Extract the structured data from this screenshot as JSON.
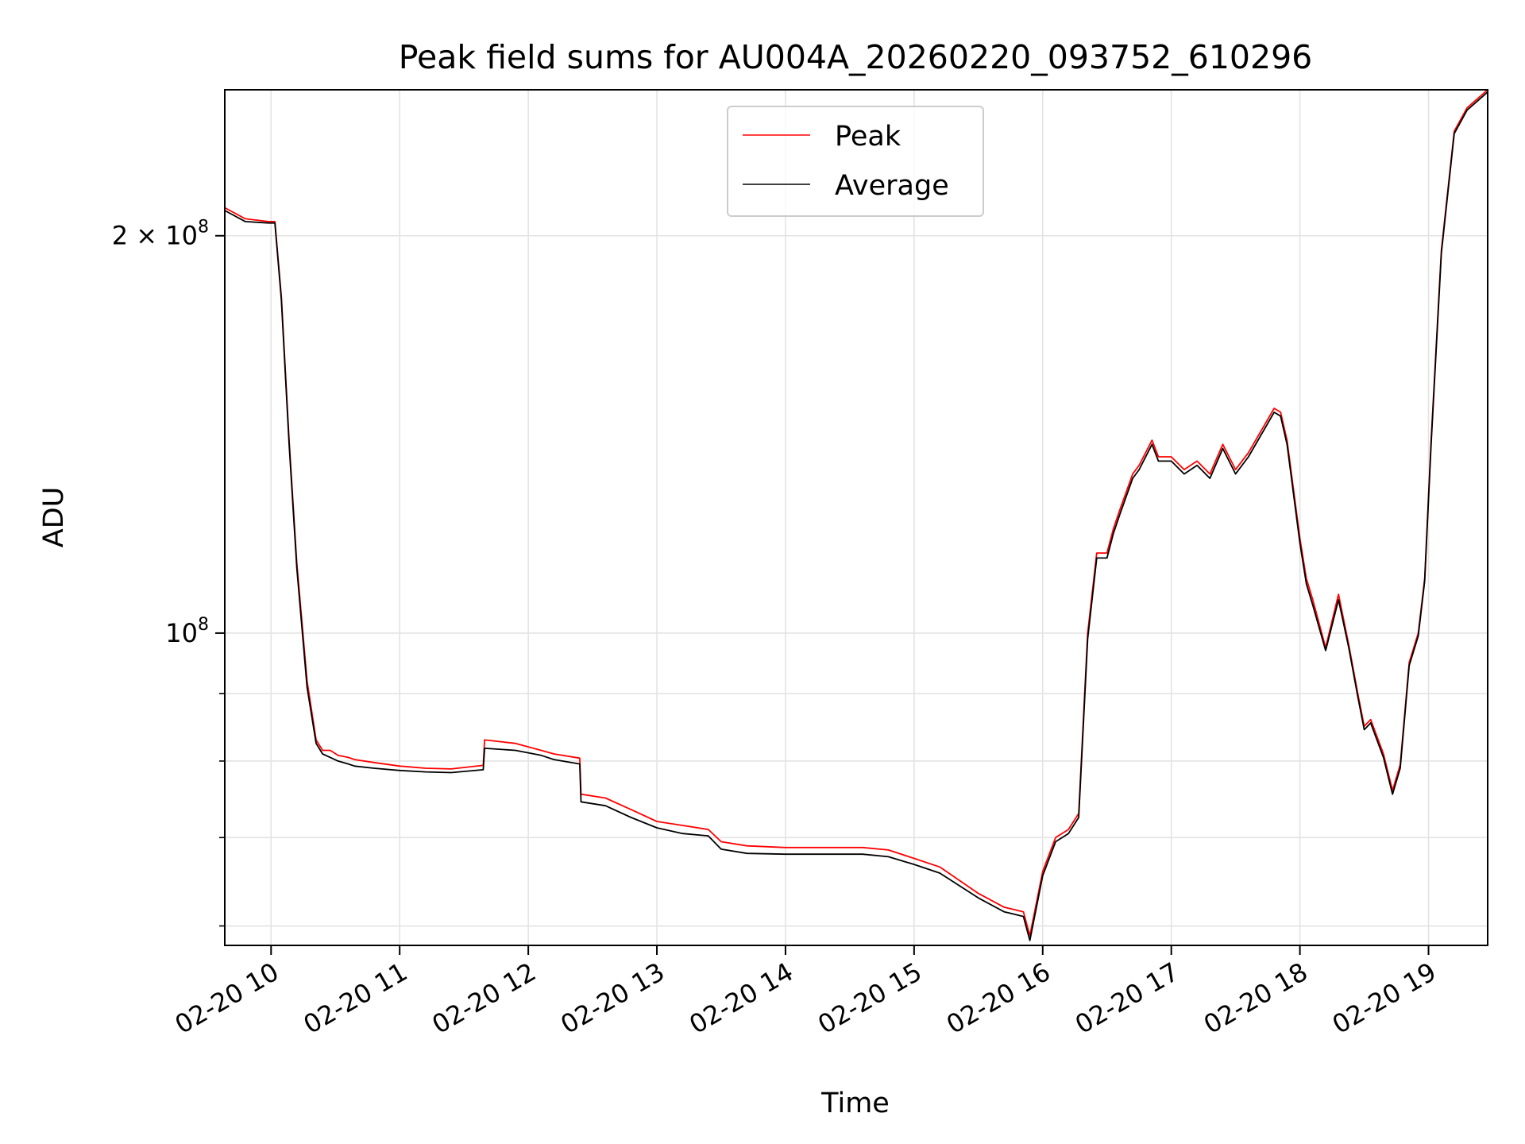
{
  "chart_data": {
    "type": "line",
    "title": "Peak field sums for AU004A_20260220_093752_610296",
    "xlabel": "Time",
    "ylabel": "ADU",
    "yscale": "log",
    "ylim": [
      58000000,
      258000000
    ],
    "xlim": [
      9.64,
      19.46
    ],
    "grid": true,
    "legend_position": "upper center",
    "x_ticks": [
      {
        "value": 10,
        "label": "02-20 10"
      },
      {
        "value": 11,
        "label": "02-20 11"
      },
      {
        "value": 12,
        "label": "02-20 12"
      },
      {
        "value": 13,
        "label": "02-20 13"
      },
      {
        "value": 14,
        "label": "02-20 14"
      },
      {
        "value": 15,
        "label": "02-20 15"
      },
      {
        "value": 16,
        "label": "02-20 16"
      },
      {
        "value": 17,
        "label": "02-20 17"
      },
      {
        "value": 18,
        "label": "02-20 18"
      },
      {
        "value": 19,
        "label": "02-20 19"
      }
    ],
    "y_ticks": [
      {
        "value": 100000000,
        "base": "10",
        "exp": "8"
      },
      {
        "value": 200000000,
        "base": "2 × 10",
        "exp": "8"
      }
    ],
    "y_minor_ticks": [
      60000000,
      70000000,
      80000000,
      90000000
    ],
    "series": [
      {
        "name": "Peak",
        "color": "#ff0000",
        "x": [
          9.64,
          9.8,
          9.98,
          10.03,
          10.08,
          10.14,
          10.2,
          10.28,
          10.35,
          10.4,
          10.46,
          10.52,
          10.6,
          10.65,
          10.8,
          11.0,
          11.2,
          11.4,
          11.65,
          11.66,
          11.9,
          12.1,
          12.2,
          12.4,
          12.41,
          12.6,
          12.8,
          13.0,
          13.2,
          13.4,
          13.5,
          13.7,
          14.0,
          14.3,
          14.6,
          14.8,
          15.0,
          15.2,
          15.5,
          15.7,
          15.85,
          15.9,
          16.0,
          16.1,
          16.2,
          16.28,
          16.35,
          16.42,
          16.5,
          16.55,
          16.6,
          16.7,
          16.75,
          16.85,
          16.9,
          17.0,
          17.1,
          17.2,
          17.3,
          17.4,
          17.5,
          17.6,
          17.8,
          17.85,
          17.9,
          18.0,
          18.05,
          18.1,
          18.2,
          18.3,
          18.38,
          18.45,
          18.5,
          18.55,
          18.65,
          18.72,
          18.78,
          18.85,
          18.92,
          18.97,
          19.02,
          19.1,
          19.2,
          19.3,
          19.46
        ],
        "y": [
          210000000,
          206000000,
          205000000,
          205000000,
          180000000,
          140000000,
          113000000,
          92000000,
          83000000,
          81500000,
          81500000,
          80800000,
          80500000,
          80200000,
          79800000,
          79300000,
          79000000,
          78900000,
          79400000,
          83000000,
          82500000,
          81500000,
          81000000,
          80400000,
          75500000,
          75000000,
          73500000,
          72000000,
          71500000,
          71000000,
          69500000,
          69000000,
          68800000,
          68800000,
          68800000,
          68500000,
          67500000,
          66500000,
          63500000,
          62000000,
          61500000,
          59000000,
          66000000,
          70000000,
          71000000,
          73000000,
          100000000,
          115000000,
          115000000,
          120000000,
          124000000,
          132000000,
          134000000,
          140000000,
          136000000,
          136000000,
          133000000,
          135000000,
          132000000,
          139000000,
          133000000,
          137000000,
          148000000,
          147000000,
          140000000,
          118000000,
          110000000,
          106000000,
          97500000,
          107000000,
          98000000,
          90000000,
          85000000,
          86000000,
          81000000,
          76000000,
          79500000,
          95000000,
          100000000,
          110000000,
          140000000,
          195000000,
          240000000,
          250000000,
          258000000
        ]
      },
      {
        "name": "Average",
        "color": "#000000",
        "x": [
          9.64,
          9.8,
          9.98,
          10.03,
          10.08,
          10.14,
          10.2,
          10.28,
          10.35,
          10.4,
          10.46,
          10.52,
          10.6,
          10.65,
          10.8,
          11.0,
          11.2,
          11.4,
          11.65,
          11.66,
          11.9,
          12.1,
          12.2,
          12.4,
          12.41,
          12.6,
          12.8,
          13.0,
          13.2,
          13.4,
          13.5,
          13.7,
          14.0,
          14.3,
          14.6,
          14.8,
          15.0,
          15.2,
          15.5,
          15.7,
          15.85,
          15.9,
          16.0,
          16.1,
          16.2,
          16.28,
          16.35,
          16.42,
          16.5,
          16.55,
          16.6,
          16.7,
          16.75,
          16.85,
          16.9,
          17.0,
          17.1,
          17.2,
          17.3,
          17.4,
          17.5,
          17.6,
          17.8,
          17.85,
          17.9,
          18.0,
          18.05,
          18.1,
          18.2,
          18.3,
          18.38,
          18.45,
          18.5,
          18.55,
          18.65,
          18.72,
          18.78,
          18.85,
          18.92,
          18.97,
          19.02,
          19.1,
          19.2,
          19.3,
          19.46
        ],
        "y": [
          209000000,
          205000000,
          204500000,
          204500000,
          179000000,
          139000000,
          112000000,
          91000000,
          82500000,
          81000000,
          80500000,
          80000000,
          79600000,
          79300000,
          79000000,
          78700000,
          78500000,
          78400000,
          78800000,
          81800000,
          81500000,
          80800000,
          80200000,
          79600000,
          74500000,
          74000000,
          72500000,
          71200000,
          70500000,
          70200000,
          68600000,
          68100000,
          68000000,
          68000000,
          68000000,
          67700000,
          66800000,
          65800000,
          63000000,
          61500000,
          61000000,
          58500000,
          65500000,
          69500000,
          70500000,
          72500000,
          99000000,
          114000000,
          114000000,
          119000000,
          123000000,
          131000000,
          133000000,
          139000000,
          135000000,
          135000000,
          132000000,
          134000000,
          131000000,
          138000000,
          132000000,
          136000000,
          147000000,
          146000000,
          139000000,
          117000000,
          109000000,
          105000000,
          97000000,
          106000000,
          97500000,
          89500000,
          84500000,
          85500000,
          80500000,
          75500000,
          79000000,
          94500000,
          99500000,
          109500000,
          139000000,
          194000000,
          239000000,
          249000000,
          257000000
        ]
      }
    ]
  }
}
